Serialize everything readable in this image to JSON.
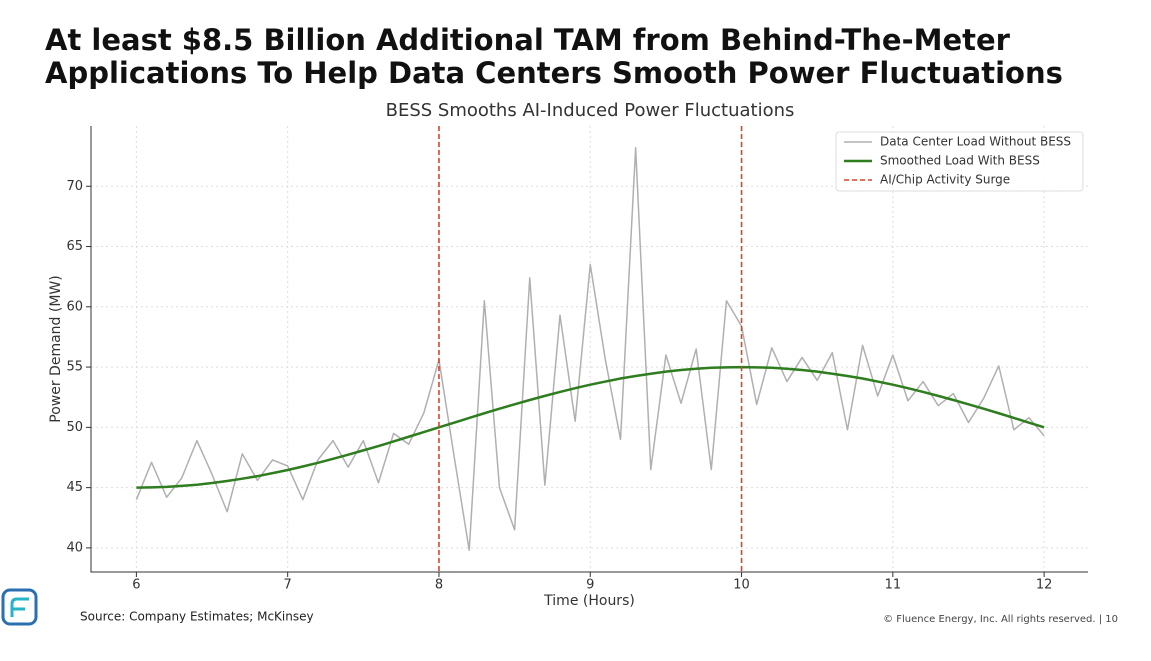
{
  "slide": {
    "title_lines": [
      "At least $8.5 Billion Additional TAM from Behind-The-Meter",
      "Applications To Help Data Centers Smooth Power Fluctuations"
    ],
    "source": "Source: Company Estimates; McKinsey",
    "copyright": "© Fluence Energy, Inc. All rights reserved.  |  10"
  },
  "chart_data": {
    "type": "line",
    "title": "BESS Smooths AI-Induced Power Fluctuations",
    "x_label": "Time (Hours)",
    "y_label": "Power Demand (MW)",
    "x": [
      6.0,
      6.1,
      6.2,
      6.3,
      6.4,
      6.5,
      6.6,
      6.7,
      6.8,
      6.9,
      7.0,
      7.1,
      7.2,
      7.3,
      7.4,
      7.5,
      7.6,
      7.7,
      7.8,
      7.9,
      8.0,
      8.1,
      8.2,
      8.3,
      8.4,
      8.5,
      8.6,
      8.7,
      8.8,
      8.9,
      9.0,
      9.1,
      9.2,
      9.3,
      9.4,
      9.5,
      9.6,
      9.7,
      9.8,
      9.9,
      10.0,
      10.1,
      10.2,
      10.3,
      10.4,
      10.5,
      10.6,
      10.7,
      10.8,
      10.9,
      11.0,
      11.1,
      11.2,
      11.3,
      11.4,
      11.5,
      11.6,
      11.7,
      11.8,
      11.9,
      12.0
    ],
    "series": [
      {
        "name": "Data Center Load Without BESS",
        "color": "#b0b0b0",
        "width": 1.5,
        "values": [
          44.0,
          47.1,
          44.2,
          45.8,
          48.9,
          46.1,
          43.0,
          47.8,
          45.6,
          47.3,
          46.8,
          44.0,
          47.3,
          48.9,
          46.7,
          48.9,
          45.4,
          49.5,
          48.6,
          51.2,
          55.6,
          47.6,
          39.8,
          60.5,
          45.0,
          41.5,
          62.4,
          45.2,
          59.3,
          50.5,
          63.5,
          55.6,
          49.0,
          73.2,
          46.5,
          56.0,
          52.0,
          56.5,
          46.5,
          60.5,
          58.4,
          51.9,
          56.6,
          53.8,
          55.8,
          53.9,
          56.2,
          49.8,
          56.8,
          52.6,
          56.0,
          52.2,
          53.8,
          51.8,
          52.8,
          50.4,
          52.4,
          55.1,
          49.8,
          50.8,
          49.3
        ]
      },
      {
        "name": "Smoothed Load With BESS",
        "color": "#2e7d1e",
        "width": 2.5,
        "values": [
          45.0,
          45.02,
          45.06,
          45.14,
          45.24,
          45.38,
          45.55,
          45.74,
          45.95,
          46.2,
          46.46,
          46.75,
          47.06,
          47.39,
          47.73,
          48.09,
          48.45,
          48.83,
          49.22,
          49.61,
          50.0,
          50.39,
          50.78,
          51.17,
          51.55,
          51.91,
          52.27,
          52.61,
          52.94,
          53.25,
          53.54,
          53.8,
          54.05,
          54.26,
          54.45,
          54.62,
          54.76,
          54.86,
          54.94,
          54.98,
          55.0,
          54.98,
          54.94,
          54.86,
          54.76,
          54.62,
          54.45,
          54.26,
          54.05,
          53.8,
          53.54,
          53.25,
          52.94,
          52.61,
          52.27,
          51.91,
          51.55,
          51.17,
          50.78,
          50.39,
          50.0
        ]
      }
    ],
    "vlines": {
      "name": "AI/Chip Activity Surge",
      "color": "#d9432b",
      "values": [
        8,
        10
      ]
    },
    "xlim": [
      5.7,
      12.29
    ],
    "ylim": [
      38,
      75
    ],
    "xticks": [
      6,
      7,
      8,
      9,
      10,
      11,
      12
    ],
    "yticks": [
      40,
      45,
      50,
      55,
      60,
      65,
      70
    ],
    "grid": true,
    "legend": "upper right"
  }
}
